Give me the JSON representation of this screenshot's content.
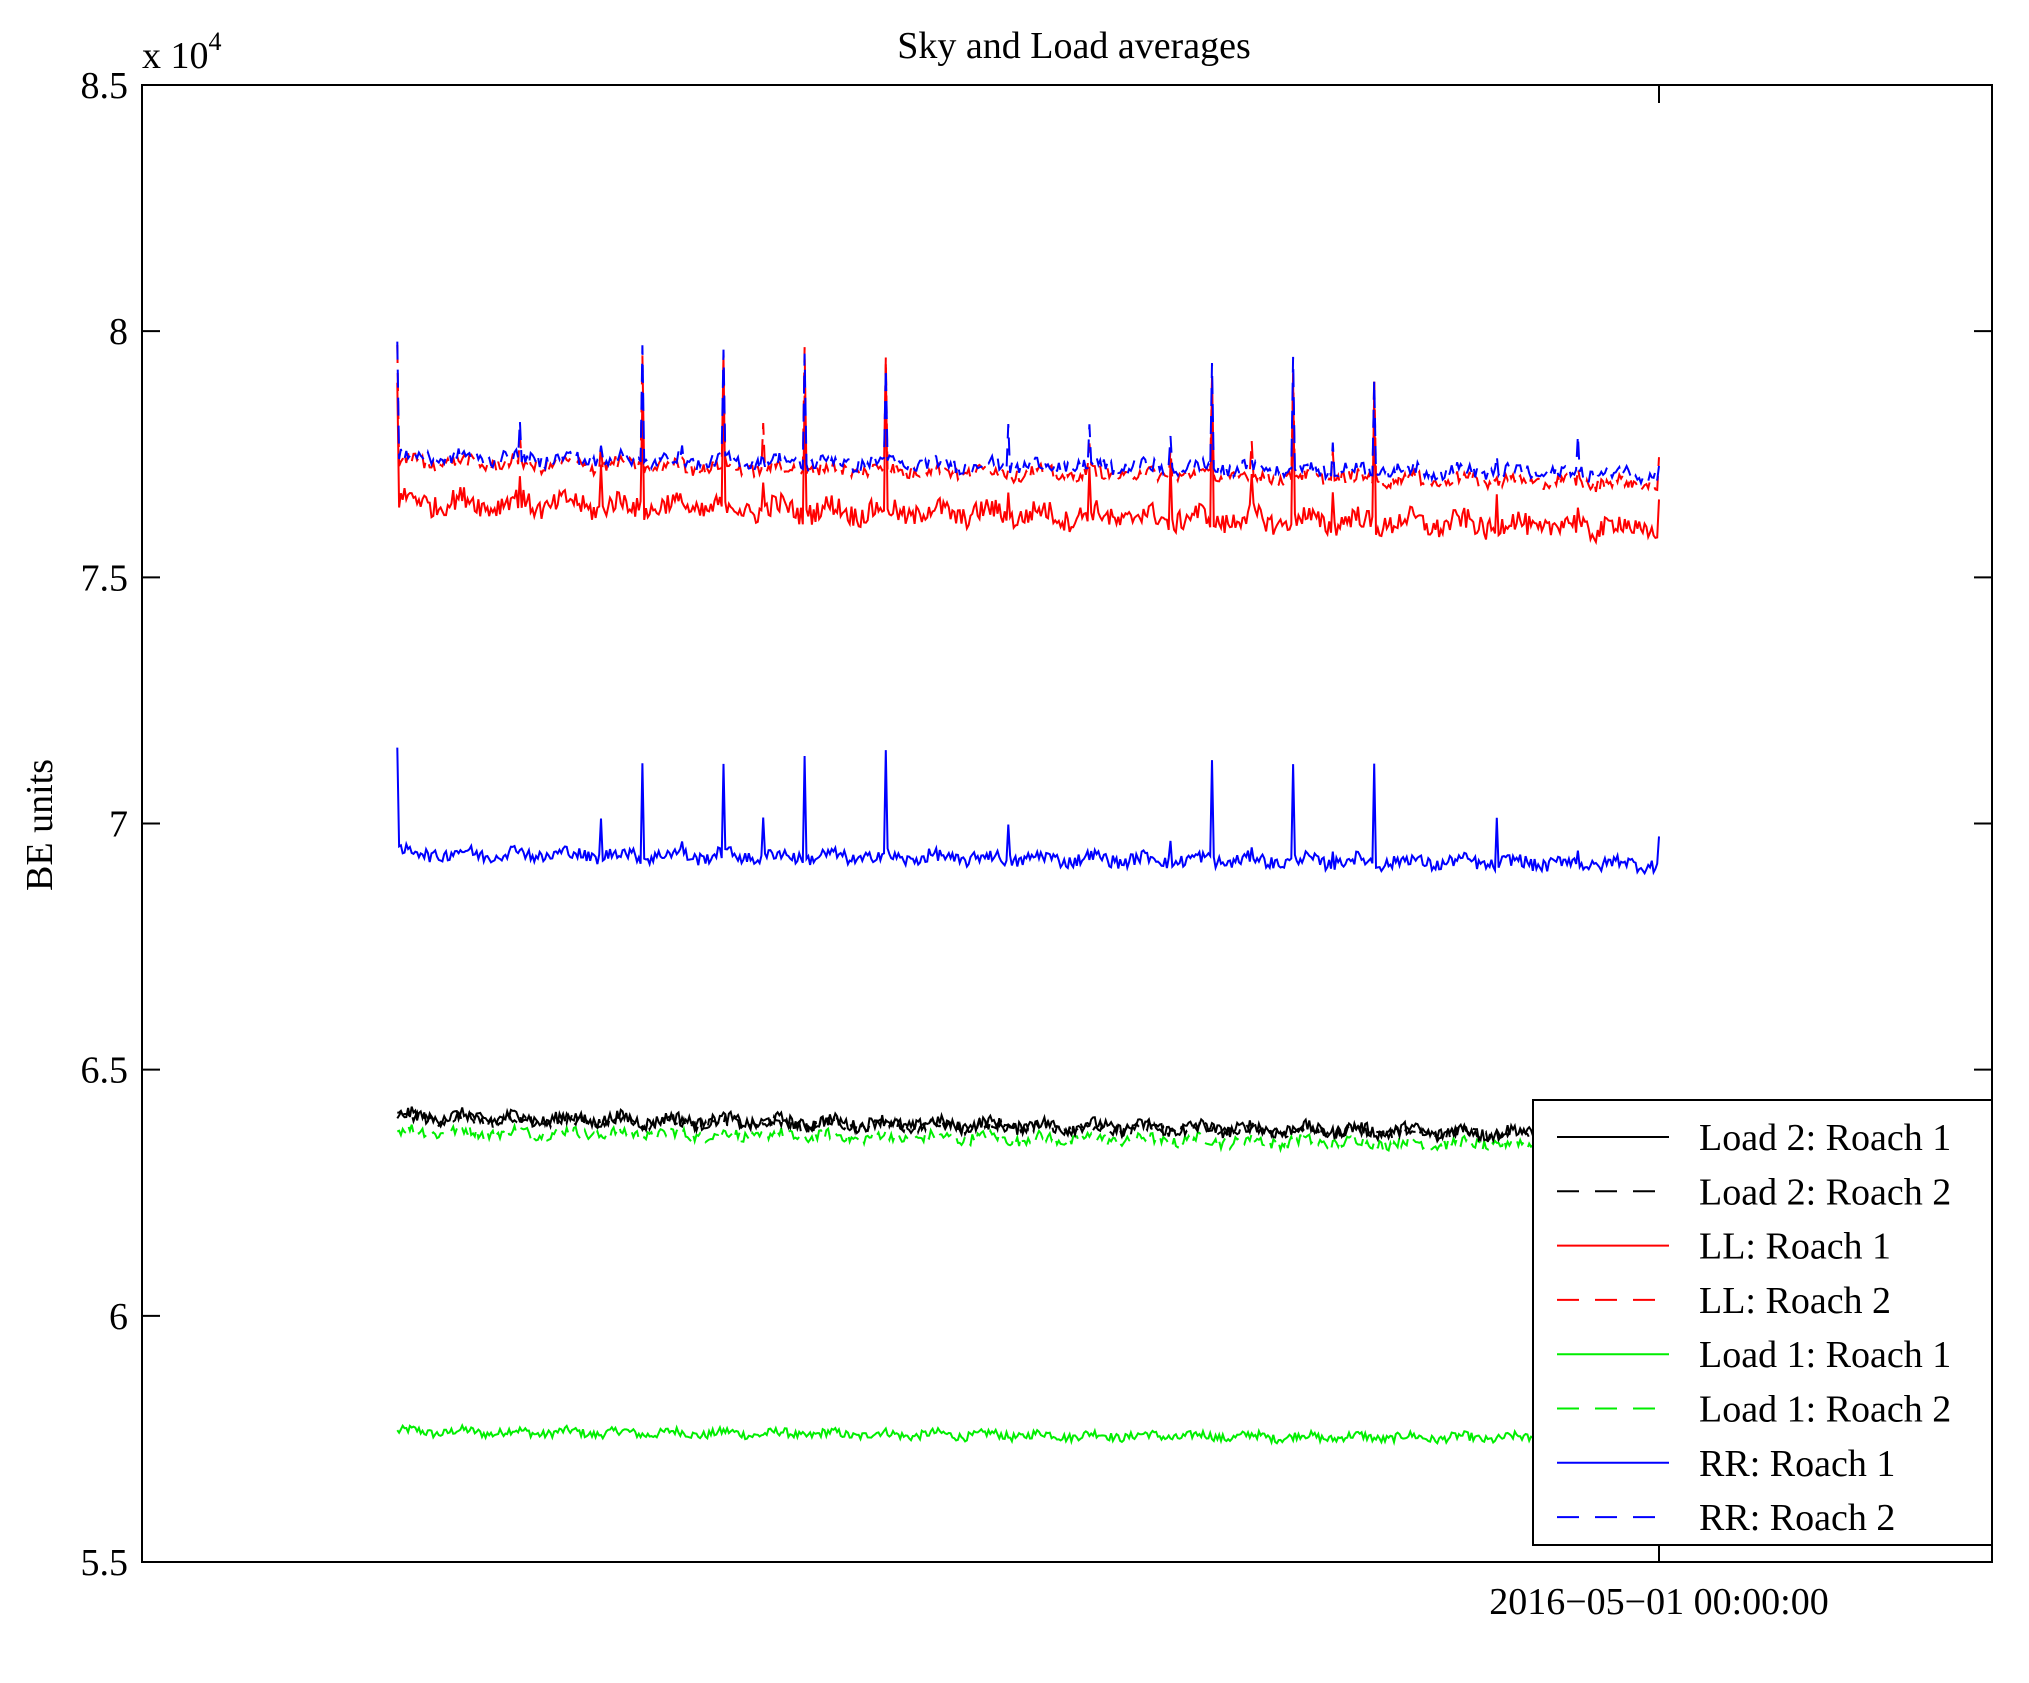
{
  "chart_data": {
    "type": "line",
    "title": "Sky and Load averages",
    "ylabel": "BE units",
    "xlabel": "",
    "y_exponent_label": "x 10",
    "y_exponent_power": "4",
    "ylim": [
      5.5,
      8.5
    ],
    "y_ticks": [
      "5.5",
      "6",
      "6.5",
      "7",
      "7.5",
      "8",
      "8.5"
    ],
    "y_tick_values": [
      5.5,
      6.0,
      6.5,
      7.0,
      7.5,
      8.0,
      8.5
    ],
    "xlim": [
      0,
      1
    ],
    "x_tick_values": [
      0.82
    ],
    "x_ticks": [
      "2016−05−01 00:00:00"
    ],
    "grid": false,
    "legend_position": "lower-right",
    "x_domain": [
      0.138,
      0.82
    ],
    "spike_period": 0.044,
    "series": [
      {
        "name": "Load 2: Roach 1",
        "color": "#000000",
        "dashed": false,
        "base": 6.405,
        "end_base": 6.368,
        "noise": 0.012,
        "spike": 0.0
      },
      {
        "name": "Load 2: Roach 2",
        "color": "#000000",
        "dashed": true,
        "base": 6.4,
        "end_base": 6.365,
        "noise": 0.01,
        "spike": 0.0
      },
      {
        "name": "LL: Roach 1",
        "color": "#ff0000",
        "dashed": false,
        "base": 7.655,
        "end_base": 7.6,
        "noise": 0.02,
        "spike": 0.26
      },
      {
        "name": "LL: Roach 2",
        "color": "#ff0000",
        "dashed": true,
        "base": 7.735,
        "end_base": 7.69,
        "noise": 0.012,
        "spike": 0.24
      },
      {
        "name": "Load 1: Roach 1",
        "color": "#00ee00",
        "dashed": false,
        "base": 5.765,
        "end_base": 5.75,
        "noise": 0.008,
        "spike": 0.0
      },
      {
        "name": "Load 1: Roach 2",
        "color": "#00ee00",
        "dashed": true,
        "base": 6.375,
        "end_base": 6.345,
        "noise": 0.01,
        "spike": 0.0
      },
      {
        "name": "RR: Roach 1",
        "color": "#0000ff",
        "dashed": false,
        "base": 6.94,
        "end_base": 6.918,
        "noise": 0.012,
        "spike": 0.21
      },
      {
        "name": "RR: Roach 2",
        "color": "#0000ff",
        "dashed": true,
        "base": 7.745,
        "end_base": 7.71,
        "noise": 0.012,
        "spike": 0.22
      }
    ]
  }
}
